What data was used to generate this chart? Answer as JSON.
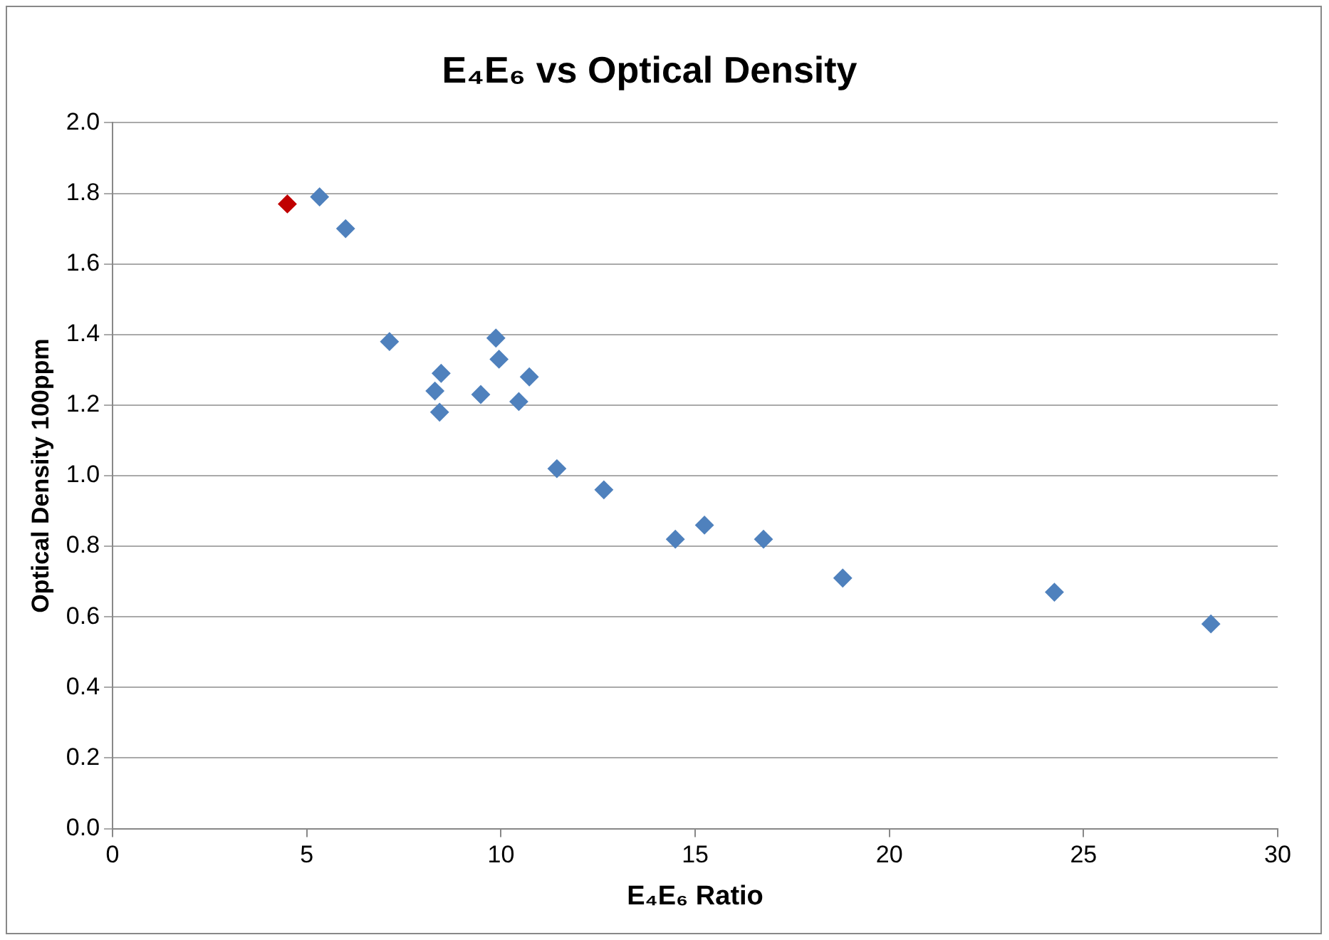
{
  "chart_data": {
    "type": "scatter",
    "title": "E₄E₆ vs Optical Density",
    "xlabel": "E₄E₆ Ratio",
    "ylabel": "Optical Density 100ppm",
    "series": [
      {
        "color": "#c00000",
        "x": [
          4.5
        ],
        "values": [
          1.77
        ]
      },
      {
        "color": "#4f81bd",
        "x": [
          5.33,
          6.0,
          7.13,
          8.46,
          8.3,
          8.42,
          9.48,
          9.87,
          9.95,
          10.46,
          10.73,
          11.44,
          12.65,
          14.49,
          15.24,
          16.76,
          18.8,
          24.25,
          28.28
        ],
        "values": [
          1.79,
          1.7,
          1.38,
          1.29,
          1.24,
          1.18,
          1.23,
          1.39,
          1.33,
          1.21,
          1.28,
          1.02,
          0.96,
          0.82,
          0.86,
          0.82,
          0.71,
          0.67,
          0.58
        ]
      }
    ],
    "xlim": [
      0,
      30
    ],
    "xticks": [
      0,
      5,
      10,
      15,
      20,
      25,
      30
    ],
    "ylim": [
      0,
      2
    ],
    "yticks": [
      {
        "value": 0,
        "label": "0.0"
      },
      {
        "value": 0.2,
        "label": "0.2"
      },
      {
        "value": 0.4,
        "label": "0.4"
      },
      {
        "value": 0.6,
        "label": "0.6"
      },
      {
        "value": 0.8,
        "label": "0.8"
      },
      {
        "value": 1,
        "label": "1.0"
      },
      {
        "value": 1.2,
        "label": "1.2"
      },
      {
        "value": 1.4,
        "label": "1.4"
      },
      {
        "value": 1.6,
        "label": "1.6"
      },
      {
        "value": 1.8,
        "label": "1.8"
      },
      {
        "value": 2,
        "label": "2.0"
      }
    ],
    "grid": "y",
    "legend": false,
    "marker": "diamond"
  }
}
